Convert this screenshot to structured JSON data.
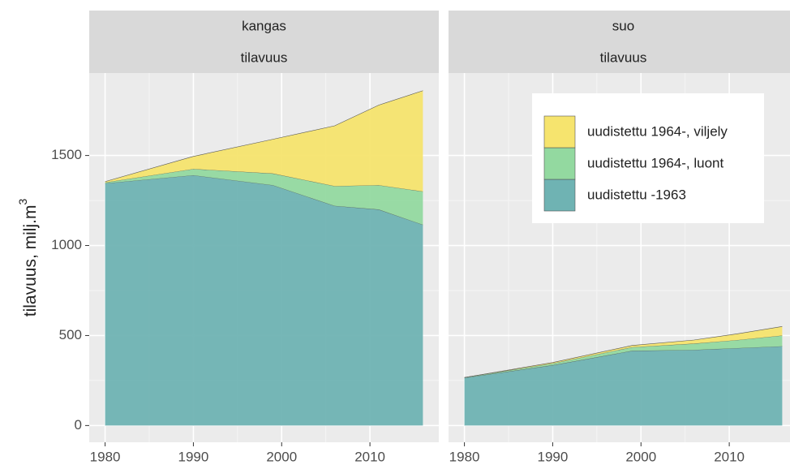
{
  "chart_data": [
    {
      "type": "area",
      "strip_labels": [
        "kangas",
        "tilavuus"
      ],
      "ylabel": "tilavuus, milj.m",
      "ylabel_superscript": "3",
      "x": [
        1980,
        1990,
        1999,
        2006,
        2011,
        2016
      ],
      "series": [
        {
          "color": "#6fb3b3",
          "values": [
            1345,
            1390,
            1335,
            1220,
            1200,
            1115
          ]
        },
        {
          "color": "#93d9a0",
          "values": [
            5,
            35,
            65,
            110,
            135,
            185
          ]
        },
        {
          "color": "#f6e46e",
          "values": [
            5,
            70,
            190,
            335,
            445,
            560
          ]
        }
      ],
      "xlim": [
        1978.2,
        2017.8
      ],
      "ylim": [
        -93,
        1958
      ],
      "xticks": [
        1980,
        1990,
        2000,
        2010
      ],
      "yticks": [
        0,
        500,
        1000,
        1500
      ],
      "grid": true
    },
    {
      "type": "area",
      "strip_labels": [
        "suo",
        "tilavuus"
      ],
      "x": [
        1980,
        1990,
        1999,
        2006,
        2011,
        2016
      ],
      "series": [
        {
          "name": "uudistettu -1963",
          "color": "#6fb3b3",
          "values": [
            265,
            335,
            415,
            420,
            430,
            440
          ]
        },
        {
          "name": "uudistettu 1964-, luont",
          "color": "#93d9a0",
          "values": [
            2,
            10,
            20,
            35,
            45,
            60
          ]
        },
        {
          "name": "uudistettu 1964-, viljely",
          "color": "#f6e46e",
          "values": [
            0,
            5,
            10,
            20,
            35,
            50
          ]
        }
      ],
      "xlim": [
        1978.2,
        2017.8
      ],
      "ylim": [
        -93,
        1958
      ],
      "xticks": [
        1980,
        1990,
        2000,
        2010
      ],
      "yticks": [
        0,
        500,
        1000,
        1500
      ],
      "grid": true,
      "legend": "top-right"
    }
  ]
}
